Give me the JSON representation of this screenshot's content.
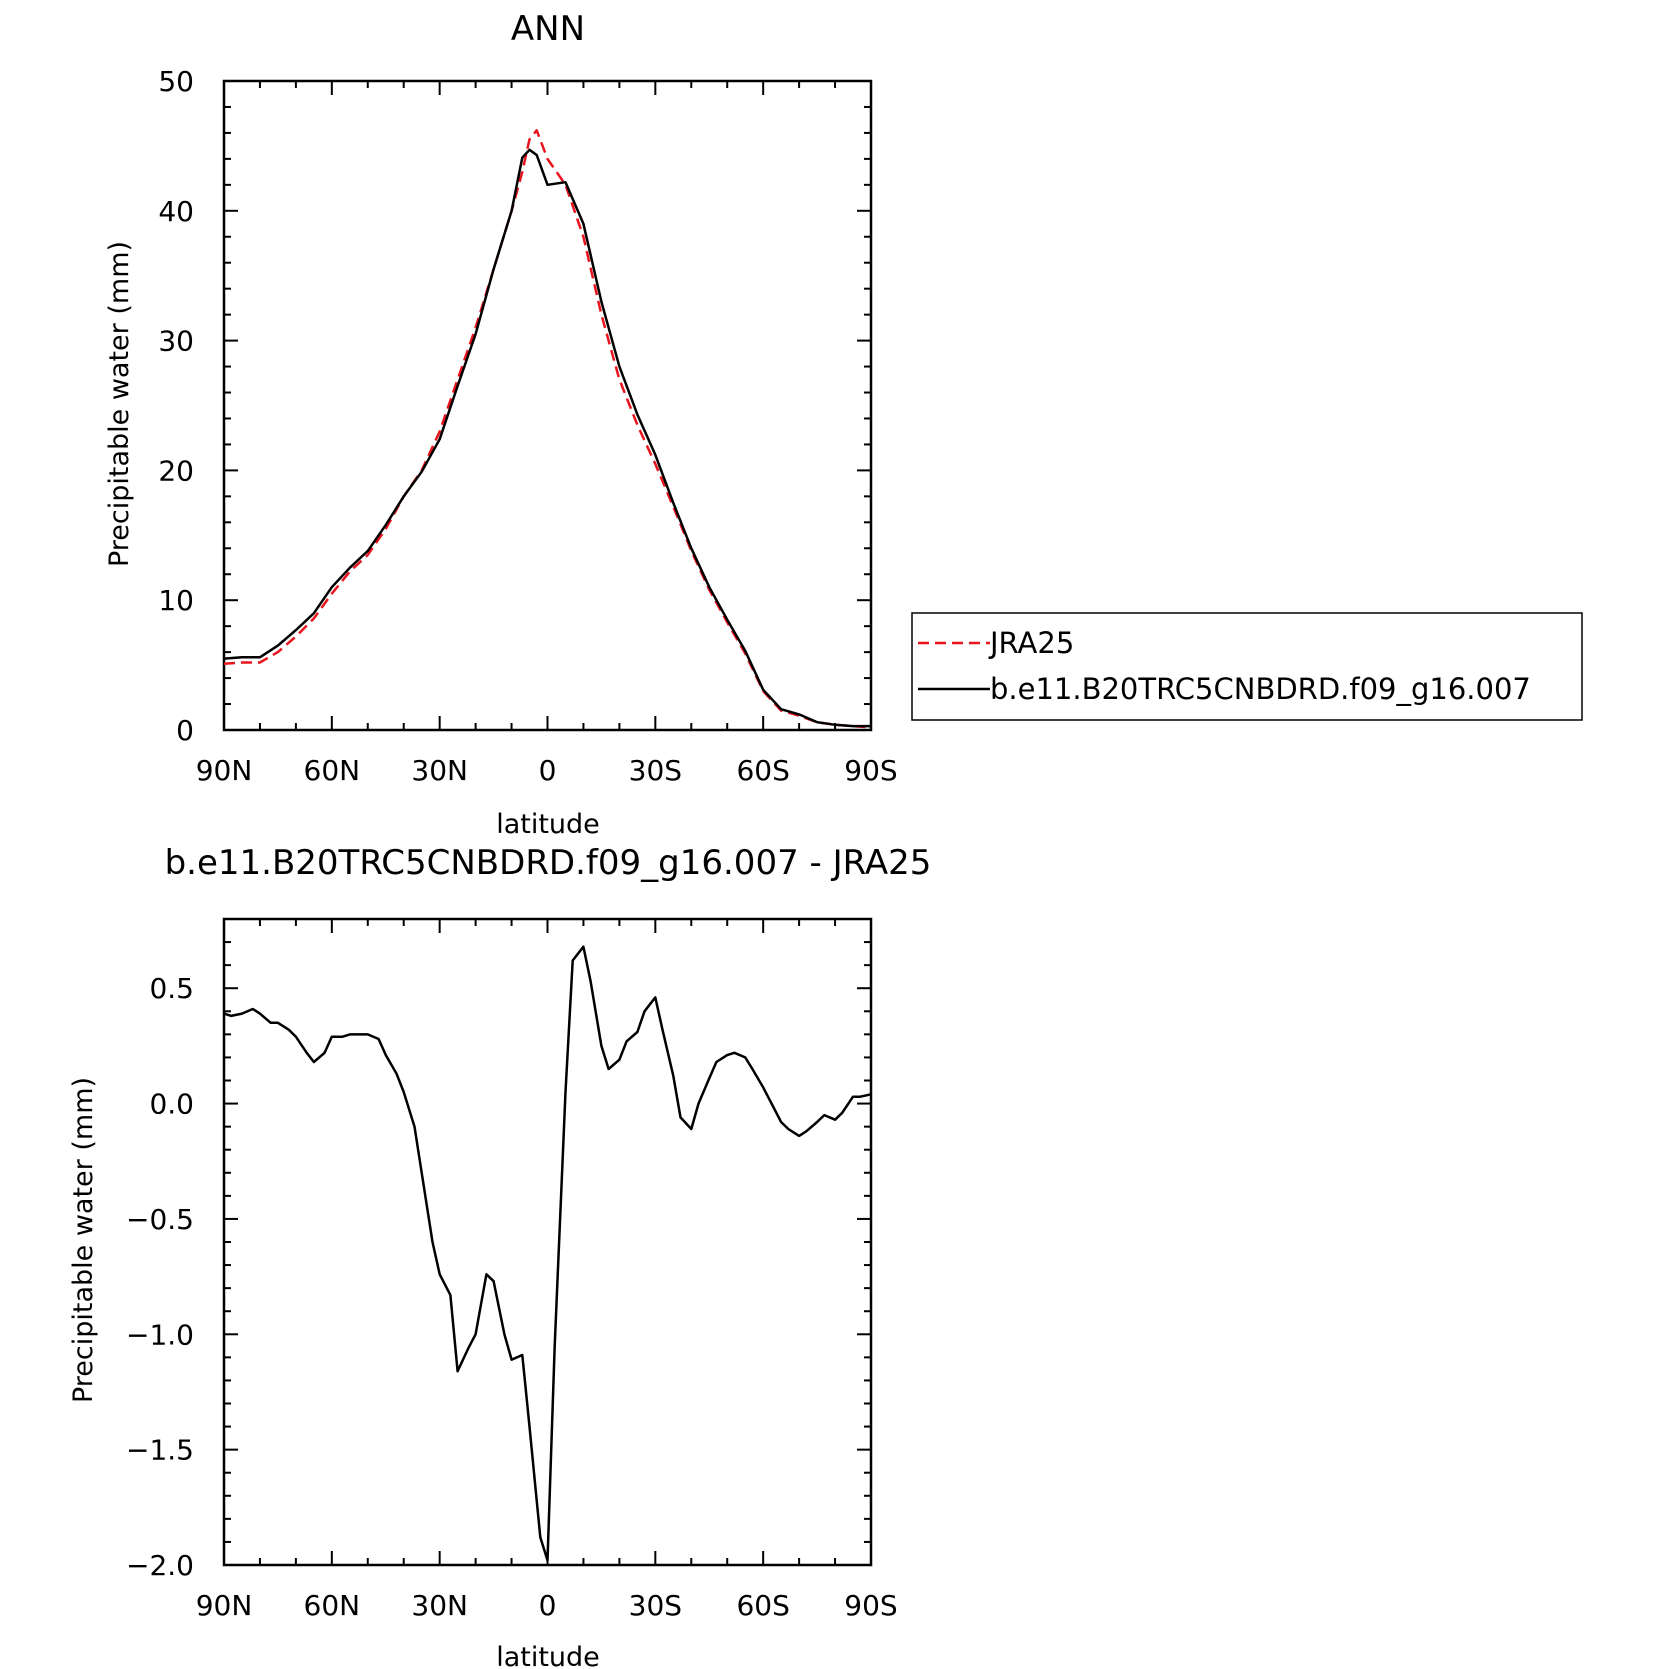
{
  "chart_data": [
    {
      "type": "line",
      "title": "ANN",
      "xlabel": "latitude",
      "ylabel": "Precipitable water (mm)",
      "xlim": [
        90,
        -90
      ],
      "ylim": [
        0,
        50
      ],
      "x_ticks": [
        90,
        60,
        30,
        0,
        -30,
        -60,
        -90
      ],
      "x_tick_labels": [
        "90N",
        "60N",
        "30N",
        "0",
        "30S",
        "60S",
        "90S"
      ],
      "y_ticks": [
        0,
        10,
        20,
        30,
        40,
        50
      ],
      "y_tick_labels": [
        "0",
        "10",
        "20",
        "30",
        "40",
        "50"
      ],
      "legend_position": "right",
      "series": [
        {
          "name": "JRA25",
          "color": "#e8141e",
          "dash": "dashed",
          "x": [
            90,
            85,
            80,
            75,
            70,
            65,
            60,
            55,
            50,
            45,
            40,
            35,
            30,
            25,
            20,
            15,
            10,
            7,
            5,
            3,
            0,
            -5,
            -10,
            -15,
            -20,
            -25,
            -30,
            -35,
            -40,
            -45,
            -50,
            -55,
            -60,
            -65,
            -70,
            -75,
            -80,
            -85,
            -90
          ],
          "y": [
            5.1,
            5.2,
            5.2,
            6.0,
            7.2,
            8.6,
            10.5,
            12.2,
            13.5,
            15.5,
            18.0,
            20.0,
            23.0,
            27.0,
            31.0,
            35.5,
            40.0,
            43.0,
            45.5,
            46.2,
            44.0,
            42.0,
            38.0,
            32.0,
            27.0,
            23.5,
            20.5,
            17.2,
            13.8,
            10.8,
            8.3,
            5.9,
            3.0,
            1.5,
            1.1,
            0.6,
            0.4,
            0.3,
            0.2
          ]
        },
        {
          "name": "b.e11.B20TRC5CNBDRD.f09_g16.007",
          "color": "#000000",
          "dash": "solid",
          "x": [
            90,
            85,
            80,
            75,
            70,
            65,
            60,
            55,
            50,
            45,
            40,
            35,
            30,
            25,
            20,
            15,
            10,
            7,
            5,
            3,
            0,
            -5,
            -10,
            -15,
            -20,
            -25,
            -30,
            -35,
            -40,
            -45,
            -50,
            -55,
            -60,
            -65,
            -70,
            -75,
            -80,
            -85,
            -90
          ],
          "y": [
            5.5,
            5.6,
            5.6,
            6.5,
            7.7,
            9.0,
            11.0,
            12.5,
            13.8,
            15.8,
            18.0,
            19.9,
            22.4,
            26.5,
            30.5,
            35.5,
            40.0,
            44.1,
            44.7,
            44.3,
            42.0,
            42.2,
            39.0,
            33.0,
            28.0,
            24.3,
            21.2,
            17.5,
            14.0,
            11.0,
            8.5,
            6.1,
            3.1,
            1.6,
            1.2,
            0.6,
            0.4,
            0.3,
            0.3
          ]
        }
      ]
    },
    {
      "type": "line",
      "title": "b.e11.B20TRC5CNBDRD.f09_g16.007 - JRA25",
      "xlabel": "latitude",
      "ylabel": "Precipitable water (mm)",
      "xlim": [
        90,
        -90
      ],
      "ylim": [
        -2.0,
        0.8
      ],
      "x_ticks": [
        90,
        60,
        30,
        0,
        -30,
        -60,
        -90
      ],
      "x_tick_labels": [
        "90N",
        "60N",
        "30N",
        "0",
        "30S",
        "60S",
        "90S"
      ],
      "y_ticks": [
        0.5,
        0.0,
        -0.5,
        -1.0,
        -1.5,
        -2.0
      ],
      "y_tick_labels": [
        "0.5",
        "0.0",
        "−0.5",
        "−1.0",
        "−1.5",
        "−2.0"
      ],
      "series": [
        {
          "color": "#000000",
          "dash": "solid",
          "x": [
            90,
            88,
            85,
            82,
            80,
            77,
            75,
            72,
            70,
            67,
            65,
            62,
            60,
            57,
            55,
            52,
            50,
            47,
            45,
            42,
            40,
            37,
            35,
            32,
            30,
            27,
            25,
            22,
            20,
            17,
            15,
            12,
            10,
            7,
            5,
            2,
            0,
            -2,
            -5,
            -7,
            -10,
            -12,
            -15,
            -17,
            -20,
            -22,
            -25,
            -27,
            -30,
            -32,
            -35,
            -37,
            -40,
            -42,
            -45,
            -47,
            -50,
            -52,
            -55,
            -57,
            -60,
            -62,
            -65,
            -67,
            -70,
            -72,
            -75,
            -77,
            -80,
            -82,
            -85,
            -87,
            -90
          ],
          "y": [
            0.39,
            0.38,
            0.39,
            0.41,
            0.39,
            0.35,
            0.35,
            0.32,
            0.29,
            0.22,
            0.18,
            0.22,
            0.29,
            0.29,
            0.3,
            0.3,
            0.3,
            0.28,
            0.21,
            0.13,
            0.05,
            -0.1,
            -0.3,
            -0.6,
            -0.74,
            -0.83,
            -1.16,
            -1.06,
            -1.0,
            -0.74,
            -0.77,
            -1.0,
            -1.11,
            -1.09,
            -1.4,
            -1.88,
            -1.98,
            -1.05,
            0.05,
            0.62,
            0.68,
            0.53,
            0.25,
            0.15,
            0.19,
            0.27,
            0.31,
            0.4,
            0.46,
            0.32,
            0.12,
            -0.06,
            -0.11,
            0.0,
            0.11,
            0.18,
            0.21,
            0.22,
            0.2,
            0.15,
            0.07,
            0.01,
            -0.08,
            -0.11,
            -0.14,
            -0.12,
            -0.08,
            -0.05,
            -0.07,
            -0.04,
            0.03,
            0.03,
            0.04
          ]
        }
      ]
    }
  ]
}
